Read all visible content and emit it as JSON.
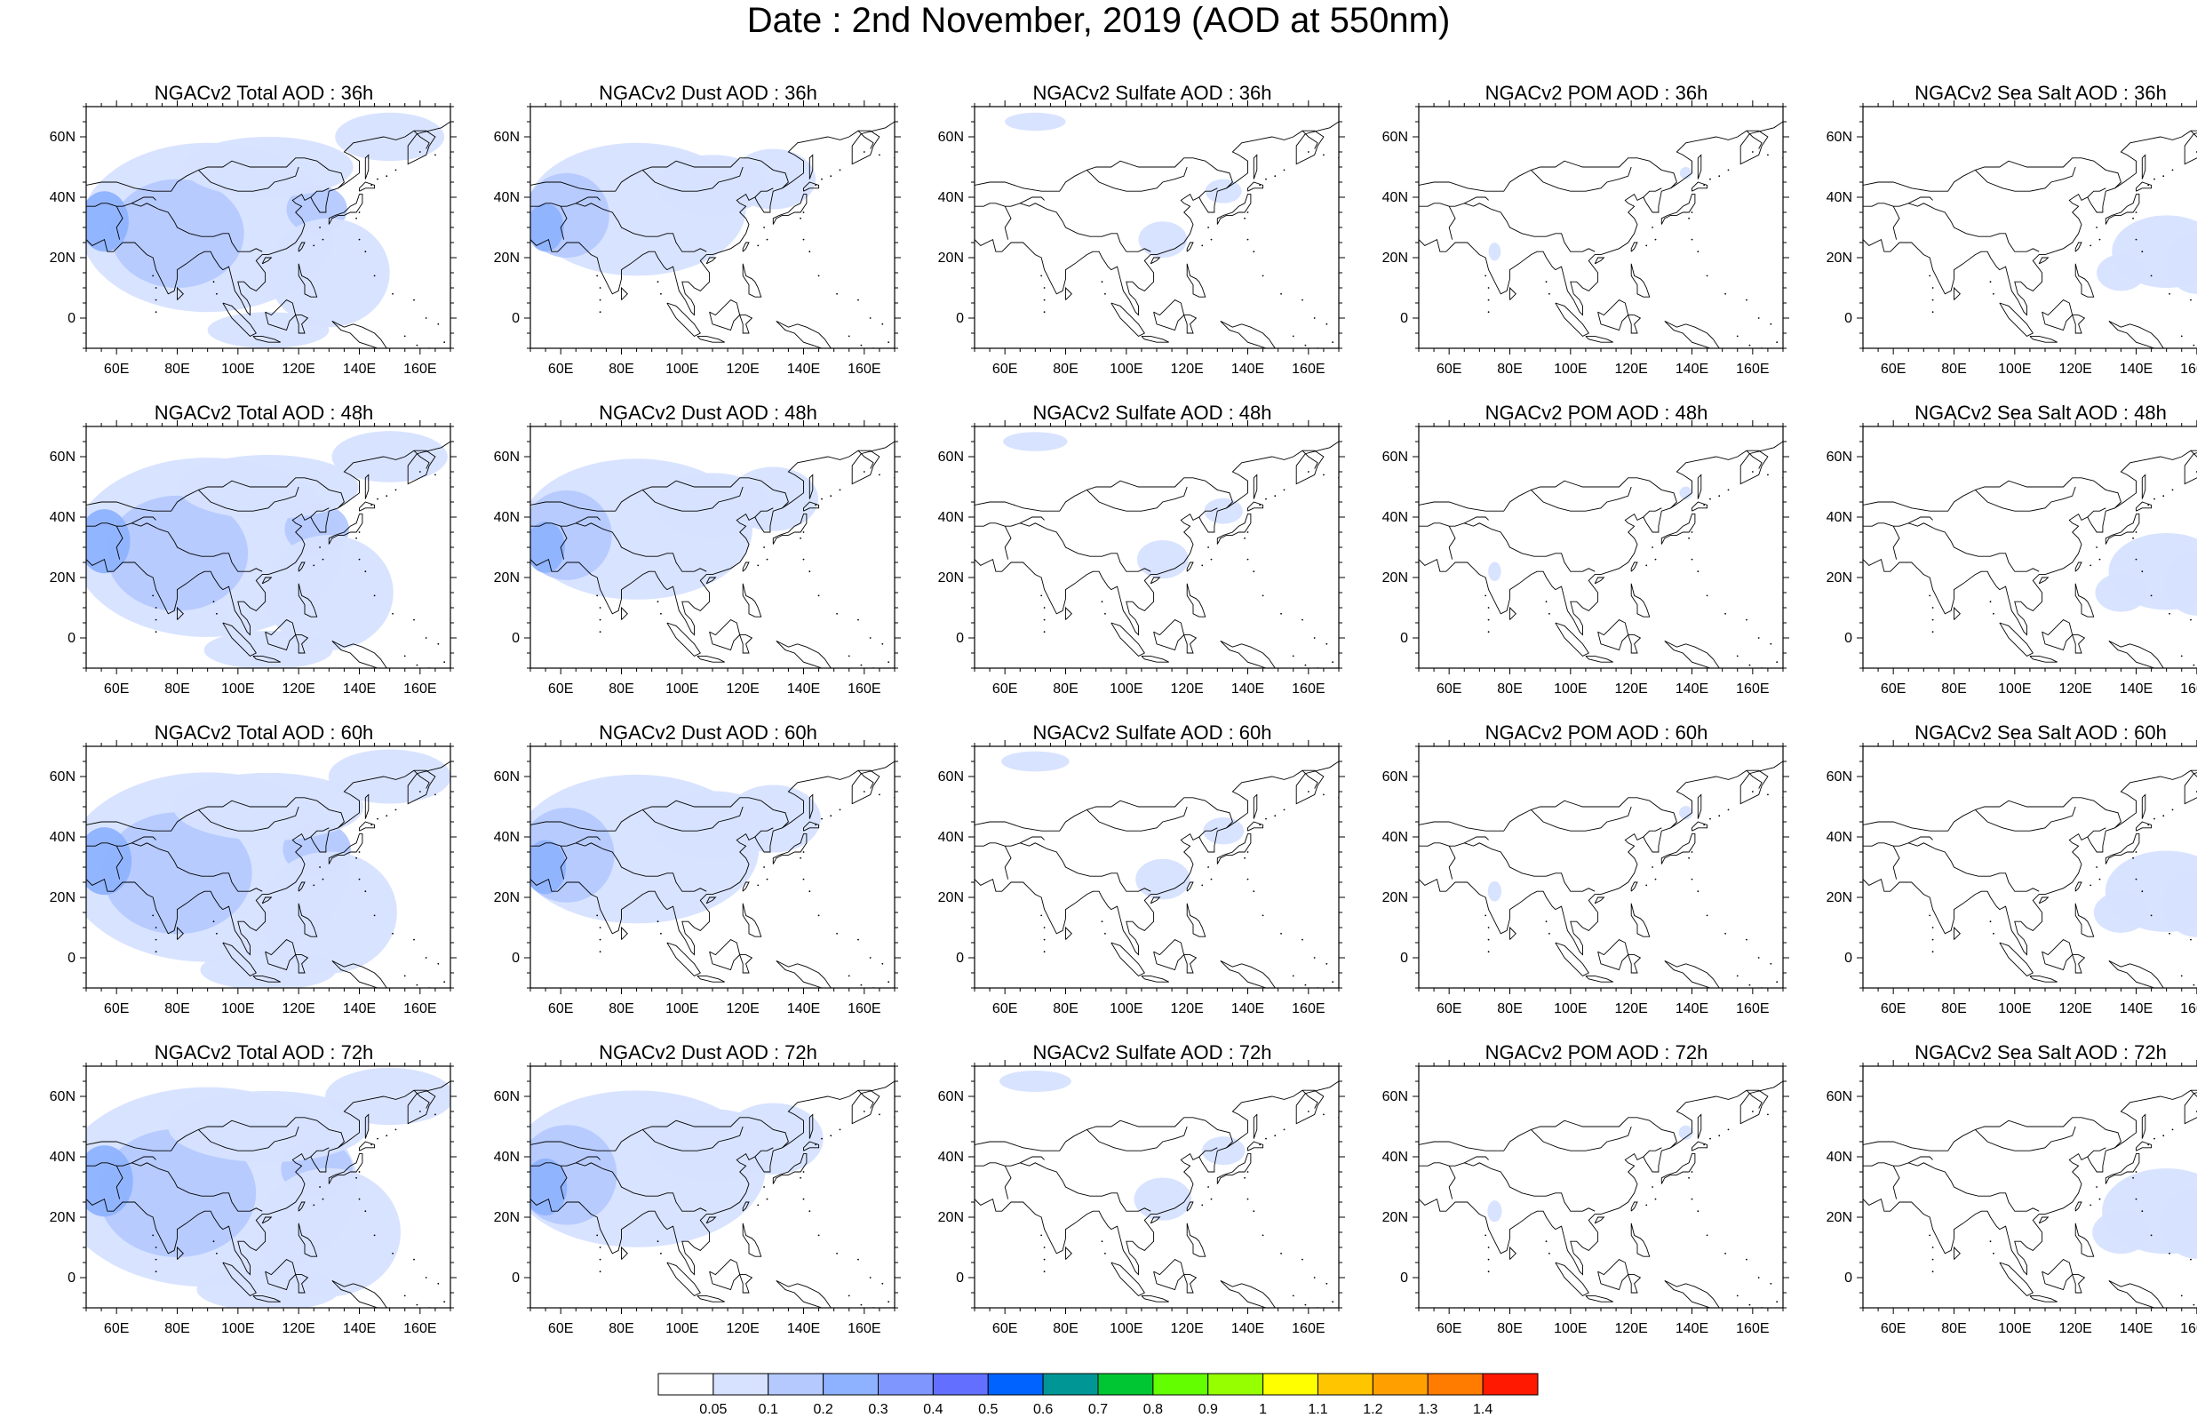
{
  "title": "Date : 2nd November, 2019 (AOD at 550nm)",
  "lon_ticks": [
    "60E",
    "80E",
    "100E",
    "120E",
    "140E",
    "160E"
  ],
  "lat_ticks": [
    "60N",
    "40N",
    "20N",
    "0"
  ],
  "colors": {
    "coast": "#000000",
    "frame": "#000000",
    "aod_levels": [
      "#ffffff",
      "#d6e2ff",
      "#b5c9ff",
      "#8eb2ff",
      "#7f96ff",
      "#6370ff",
      "#0063ff",
      "#009696",
      "#00c633",
      "#63ff00",
      "#96ff00",
      "#c6ff33",
      "#ffff00",
      "#ffc600",
      "#ffa000",
      "#ff7c00",
      "#ff1900"
    ]
  },
  "panels": [
    {
      "title": "NGACv2 Total AOD : 36h",
      "species": "total",
      "hour": 36
    },
    {
      "title": "NGACv2 Dust AOD : 36h",
      "species": "dust",
      "hour": 36
    },
    {
      "title": "NGACv2 Sulfate AOD : 36h",
      "species": "sulfate",
      "hour": 36
    },
    {
      "title": "NGACv2 POM AOD : 36h",
      "species": "pom",
      "hour": 36
    },
    {
      "title": "NGACv2 Sea Salt AOD : 36h",
      "species": "seasalt",
      "hour": 36
    },
    {
      "title": "NGACv2 Total AOD : 48h",
      "species": "total",
      "hour": 48
    },
    {
      "title": "NGACv2 Dust AOD : 48h",
      "species": "dust",
      "hour": 48
    },
    {
      "title": "NGACv2 Sulfate AOD : 48h",
      "species": "sulfate",
      "hour": 48
    },
    {
      "title": "NGACv2 POM AOD : 48h",
      "species": "pom",
      "hour": 48
    },
    {
      "title": "NGACv2 Sea Salt AOD : 48h",
      "species": "seasalt",
      "hour": 48
    },
    {
      "title": "NGACv2 Total AOD : 60h",
      "species": "total",
      "hour": 60
    },
    {
      "title": "NGACv2 Dust AOD : 60h",
      "species": "dust",
      "hour": 60
    },
    {
      "title": "NGACv2 Sulfate AOD : 60h",
      "species": "sulfate",
      "hour": 60
    },
    {
      "title": "NGACv2 POM AOD : 60h",
      "species": "pom",
      "hour": 60
    },
    {
      "title": "NGACv2 Sea Salt AOD : 60h",
      "species": "seasalt",
      "hour": 60
    },
    {
      "title": "NGACv2 Total AOD : 72h",
      "species": "total",
      "hour": 72
    },
    {
      "title": "NGACv2 Dust AOD : 72h",
      "species": "dust",
      "hour": 72
    },
    {
      "title": "NGACv2 Sulfate AOD : 72h",
      "species": "sulfate",
      "hour": 72
    },
    {
      "title": "NGACv2 POM AOD : 72h",
      "species": "pom",
      "hour": 72
    },
    {
      "title": "NGACv2 Sea Salt  AOD : 72h",
      "species": "seasalt",
      "hour": 72
    }
  ],
  "colorbar": {
    "labels": [
      "0.05",
      "0.1",
      "0.2",
      "0.3",
      "0.4",
      "0.5",
      "0.6",
      "0.7",
      "0.8",
      "0.9",
      "1",
      "1.1",
      "1.2",
      "1.3",
      "1.4"
    ],
    "colors": [
      "#ffffff",
      "#d6e2ff",
      "#b5c9ff",
      "#8eb2ff",
      "#7f96ff",
      "#6370ff",
      "#0063ff",
      "#009696",
      "#00c633",
      "#63ff00",
      "#96ff00",
      "#ffff00",
      "#ffc600",
      "#ffa000",
      "#ff7c00",
      "#ff1900"
    ]
  }
}
